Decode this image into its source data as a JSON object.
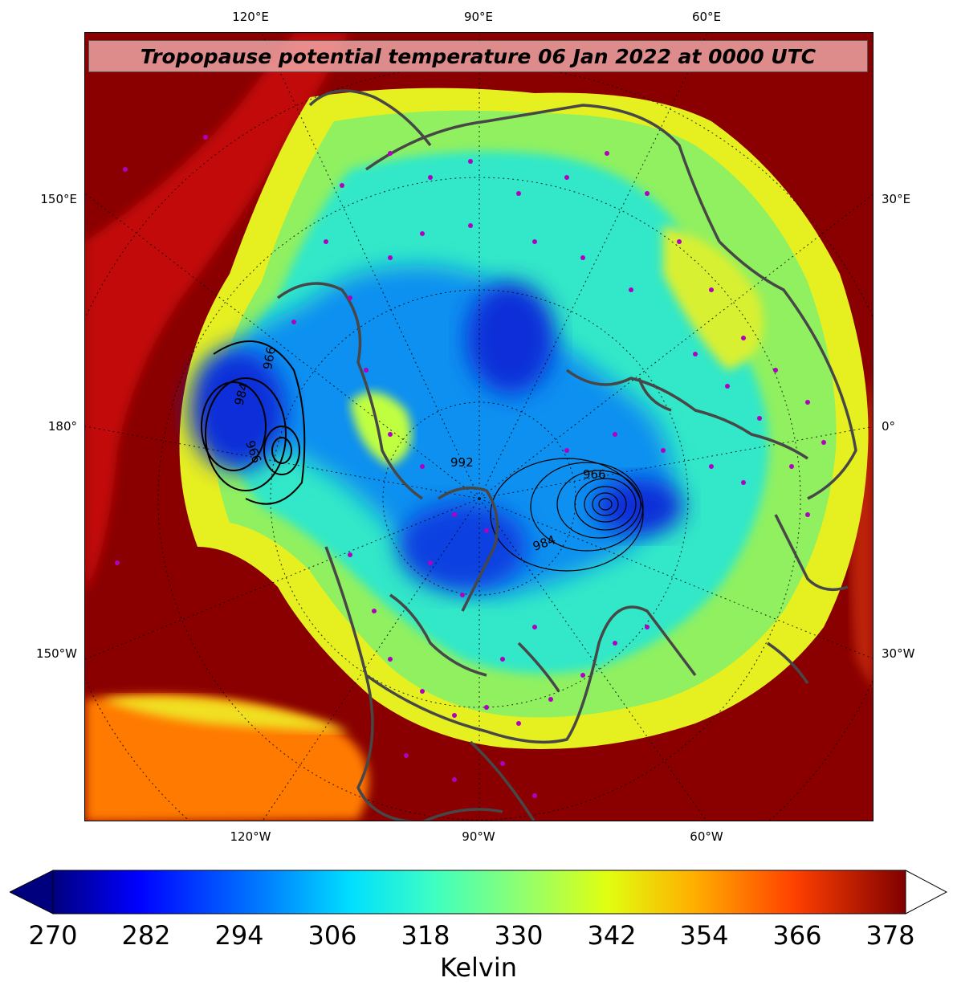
{
  "title": "Tropopause potential temperature 06 Jan 2022 at 0000 UTC",
  "axis_ticks": {
    "top": [
      "120°E",
      "90°E",
      "60°E"
    ],
    "bottom": [
      "120°W",
      "90°W",
      "60°W"
    ],
    "left": [
      "150°E",
      "180°",
      "150°W"
    ],
    "right": [
      "30°E",
      "0°",
      "30°W"
    ]
  },
  "contour_labels": [
    "966",
    "984",
    "966",
    "992",
    "984",
    "966"
  ],
  "colorbar": {
    "label": "Kelvin",
    "ticks": [
      "270",
      "282",
      "294",
      "306",
      "318",
      "330",
      "342",
      "354",
      "366",
      "378"
    ],
    "min": 270,
    "max": 380,
    "extend": "both",
    "colors": [
      "#00007f",
      "#0000ff",
      "#0080ff",
      "#00e0ff",
      "#40ffc0",
      "#90ff70",
      "#e0ff10",
      "#ffb000",
      "#ff4000",
      "#c80000",
      "#800000"
    ]
  },
  "colors": {
    "polar_low": "#0a2fd8",
    "mid": "#38e0b0",
    "subtropics": "#8a0000",
    "coastline": "#474747",
    "station_marker": "#b000c0"
  }
}
